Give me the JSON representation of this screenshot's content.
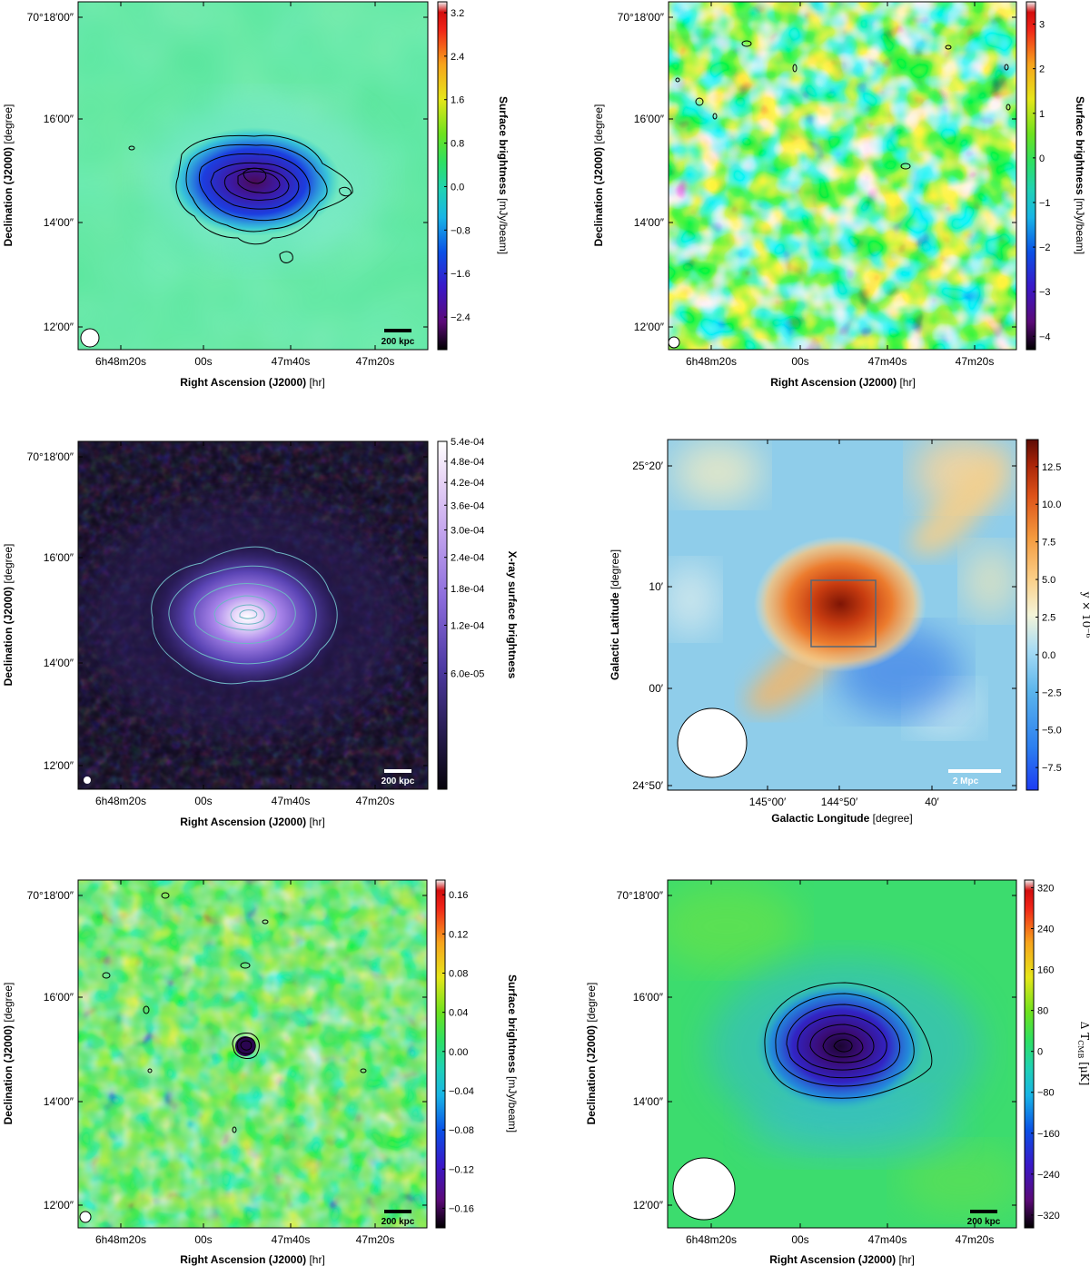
{
  "chart_data": [
    {
      "id": "p1",
      "type": "heatmap",
      "description_of_content": "Radio surface brightness map with contours",
      "xlabel_bold": "Right Ascension (J2000)",
      "xlabel_unit": "[hr]",
      "ylabel_bold": "Declination (J2000)",
      "ylabel_unit": "[degree]",
      "xticks": [
        "6h48m20s",
        "00s",
        "47m40s",
        "47m20s"
      ],
      "yticks": [
        "70°18′00″",
        "16′00″",
        "14′00″",
        "12′00″"
      ],
      "colorbar": {
        "label_bold": "Surface brightness",
        "label_unit": "[mJy/beam]",
        "ticks": [
          "3.2",
          "2.4",
          "1.6",
          "0.8",
          "0.0",
          "−0.8",
          "−1.6",
          "−2.4"
        ],
        "tick_values": [
          3.2,
          2.4,
          1.6,
          0.8,
          0.0,
          -0.8,
          -1.6,
          -2.4
        ],
        "range": [
          -3.0,
          3.4
        ],
        "colormap": "nipy_spectral"
      },
      "scale_bar": "200 kpc",
      "colors": {
        "background": "#54e59c",
        "source": "#3b1f9e",
        "contour": "#000000",
        "scale_bar": "#000000"
      }
    },
    {
      "id": "p2",
      "type": "heatmap",
      "description_of_content": "Noise-like residual radio map",
      "xlabel_bold": "Right Ascension (J2000)",
      "xlabel_unit": "[hr]",
      "ylabel_bold": "Declination (J2000)",
      "ylabel_unit": "[degree]",
      "xticks": [
        "6h48m20s",
        "00s",
        "47m40s",
        "47m20s"
      ],
      "yticks": [
        "70°18′00″",
        "16′00″",
        "14′00″",
        "12′00″"
      ],
      "colorbar": {
        "label_bold": "Surface brightness",
        "label_unit": "[mJy/beam]",
        "ticks": [
          "3",
          "2",
          "1",
          "0",
          "−1",
          "−2",
          "−3",
          "−4"
        ],
        "tick_values": [
          3,
          2,
          1,
          0,
          -1,
          -2,
          -3,
          -4
        ],
        "range": [
          -4.3,
          3.5
        ],
        "colormap": "nipy_spectral"
      },
      "colors": {
        "background": "#3fe34b"
      }
    },
    {
      "id": "p3",
      "type": "heatmap",
      "description_of_content": "X-ray surface brightness map with contours",
      "xlabel_bold": "Right Ascension (J2000)",
      "xlabel_unit": "[hr]",
      "ylabel_bold": "Declination (J2000)",
      "ylabel_unit": "[degree]",
      "xticks": [
        "6h48m20s",
        "00s",
        "47m40s",
        "47m20s"
      ],
      "yticks": [
        "70°18′00″",
        "16′00″",
        "14′00″",
        "12′00″"
      ],
      "colorbar": {
        "label_bold": "X-ray surface brightness",
        "label_unit": "",
        "ticks": [
          "5.4e-04",
          "4.8e-04",
          "4.2e-04",
          "3.6e-04",
          "3.0e-04",
          "2.4e-04",
          "1.8e-04",
          "1.2e-04",
          "6.0e-05"
        ],
        "tick_values": [
          0.00054,
          0.00048,
          0.00042,
          0.00036,
          0.0003,
          0.00024,
          0.00018,
          0.00012,
          6e-05
        ],
        "range": [
          0,
          0.00054
        ],
        "scale": "sqrt",
        "colormap": "cubehelix-purple"
      },
      "scale_bar": "200 kpc",
      "colors": {
        "background": "#0c0716",
        "contour": "#6fb6c4",
        "scale_bar": "#ffffff"
      }
    },
    {
      "id": "p4",
      "type": "heatmap",
      "description_of_content": "Compton-y map in galactic coordinates",
      "xlabel_bold": "Galactic Longitude",
      "xlabel_unit": "[degree]",
      "ylabel_bold": "Galactic Latitude",
      "ylabel_unit": "[degree]",
      "xticks": [
        "145°00′",
        "144°50′",
        "40′"
      ],
      "yticks": [
        "25°20′",
        "10′",
        "00′",
        "24°50′"
      ],
      "colorbar": {
        "label": "y × 10⁻⁶",
        "ticks": [
          "12.5",
          "10.0",
          "7.5",
          "5.0",
          "2.5",
          "0.0",
          "−2.5",
          "−5.0",
          "−7.5"
        ],
        "tick_values": [
          12.5,
          10.0,
          7.5,
          5.0,
          2.5,
          0.0,
          -2.5,
          -5.0,
          -7.5
        ],
        "range": [
          -9,
          14.3
        ],
        "colormap": "RdYlBu_r"
      },
      "scale_bar": "2 Mpc",
      "colors": {
        "background": "#8fcdea",
        "source": "#8b1a05",
        "box": "#556677",
        "scale_bar": "#ffffff"
      }
    },
    {
      "id": "p5",
      "type": "heatmap",
      "description_of_content": "High-resolution radio map with compact source",
      "xlabel_bold": "Right Ascension (J2000)",
      "xlabel_unit": "[hr]",
      "ylabel_bold": "Declination (J2000)",
      "ylabel_unit": "[degree]",
      "xticks": [
        "6h48m20s",
        "00s",
        "47m40s",
        "47m20s"
      ],
      "yticks": [
        "70°18′00″",
        "16′00″",
        "14′00″",
        "12′00″"
      ],
      "colorbar": {
        "label_bold": "Surface brightness",
        "label_unit": "[mJy/beam]",
        "ticks": [
          "0.16",
          "0.12",
          "0.08",
          "0.04",
          "0.00",
          "−0.04",
          "−0.08",
          "−0.12",
          "−0.16"
        ],
        "tick_values": [
          0.16,
          0.12,
          0.08,
          0.04,
          0.0,
          -0.04,
          -0.08,
          -0.12,
          -0.16
        ],
        "range": [
          -0.18,
          0.175
        ],
        "colormap": "nipy_spectral"
      },
      "scale_bar": "200 kpc",
      "colors": {
        "background": "#5ee062",
        "scale_bar": "#000000"
      }
    },
    {
      "id": "p6",
      "type": "heatmap",
      "description_of_content": "SZ temperature decrement map with contours",
      "xlabel_bold": "Right Ascension (J2000)",
      "xlabel_unit": "[hr]",
      "ylabel_bold": "Declination (J2000)",
      "ylabel_unit": "[degree]",
      "xticks": [
        "6h48m20s",
        "00s",
        "47m40s",
        "47m20s"
      ],
      "yticks": [
        "70°18′00″",
        "16′00″",
        "14′00″",
        "12′00″"
      ],
      "colorbar": {
        "label": "Δ T",
        "label_sub": "CMB",
        "label_unit": "[μK]",
        "ticks": [
          "320",
          "240",
          "160",
          "80",
          "0",
          "−80",
          "−160",
          "−240",
          "−320"
        ],
        "tick_values": [
          320,
          240,
          160,
          80,
          0,
          -80,
          -160,
          -240,
          -320
        ],
        "range": [
          -345,
          335
        ],
        "colormap": "nipy_spectral"
      },
      "scale_bar": "200 kpc",
      "colors": {
        "background": "#3cdc6e",
        "source": "#2b0a4a",
        "scale_bar": "#000000"
      }
    }
  ]
}
